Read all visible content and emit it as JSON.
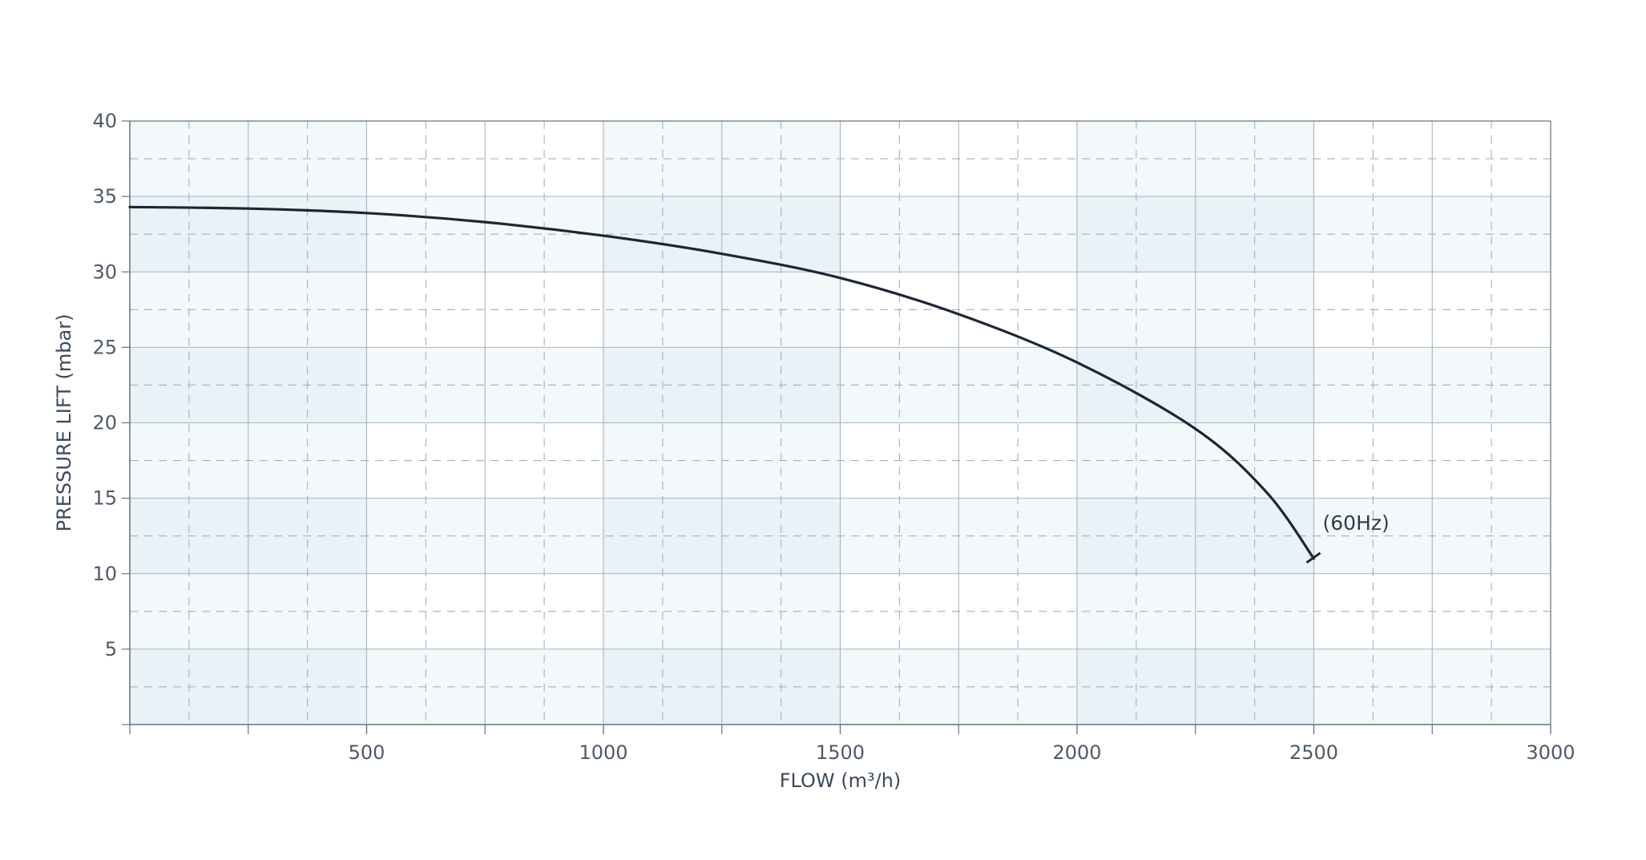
{
  "chart_data": {
    "type": "line",
    "title": "",
    "xlabel": "FLOW (m³/h)",
    "ylabel": "PRESSURE LIFT (mbar)",
    "xlim": [
      0,
      3000
    ],
    "ylim": [
      0,
      40
    ],
    "x_ticks": [
      500,
      1000,
      1500,
      2000,
      2500,
      3000
    ],
    "y_ticks": [
      5,
      10,
      15,
      20,
      25,
      30,
      35,
      40
    ],
    "grid": true,
    "legend": "none",
    "colors": {
      "line": "#1c2733",
      "band_dark": "#e8f2f7",
      "band_light": "#f3f8fb",
      "grid_major": "#a8b5c0",
      "grid_minor": "#a0b1bd",
      "axis": "#67737f"
    },
    "series": [
      {
        "values": [
          {
            "x": 0,
            "y": 34.3
          },
          {
            "x": 250,
            "y": 34.2
          },
          {
            "x": 500,
            "y": 33.9
          },
          {
            "x": 750,
            "y": 33.3
          },
          {
            "x": 1000,
            "y": 32.4
          },
          {
            "x": 1250,
            "y": 31.2
          },
          {
            "x": 1500,
            "y": 29.6
          },
          {
            "x": 1750,
            "y": 27.2
          },
          {
            "x": 2000,
            "y": 24.0
          },
          {
            "x": 2250,
            "y": 19.6
          },
          {
            "x": 2400,
            "y": 15.4
          },
          {
            "x": 2500,
            "y": 11.0
          }
        ]
      }
    ],
    "annotations": [
      {
        "text": "(60Hz)",
        "x": 2500,
        "y": 11.0
      }
    ]
  }
}
